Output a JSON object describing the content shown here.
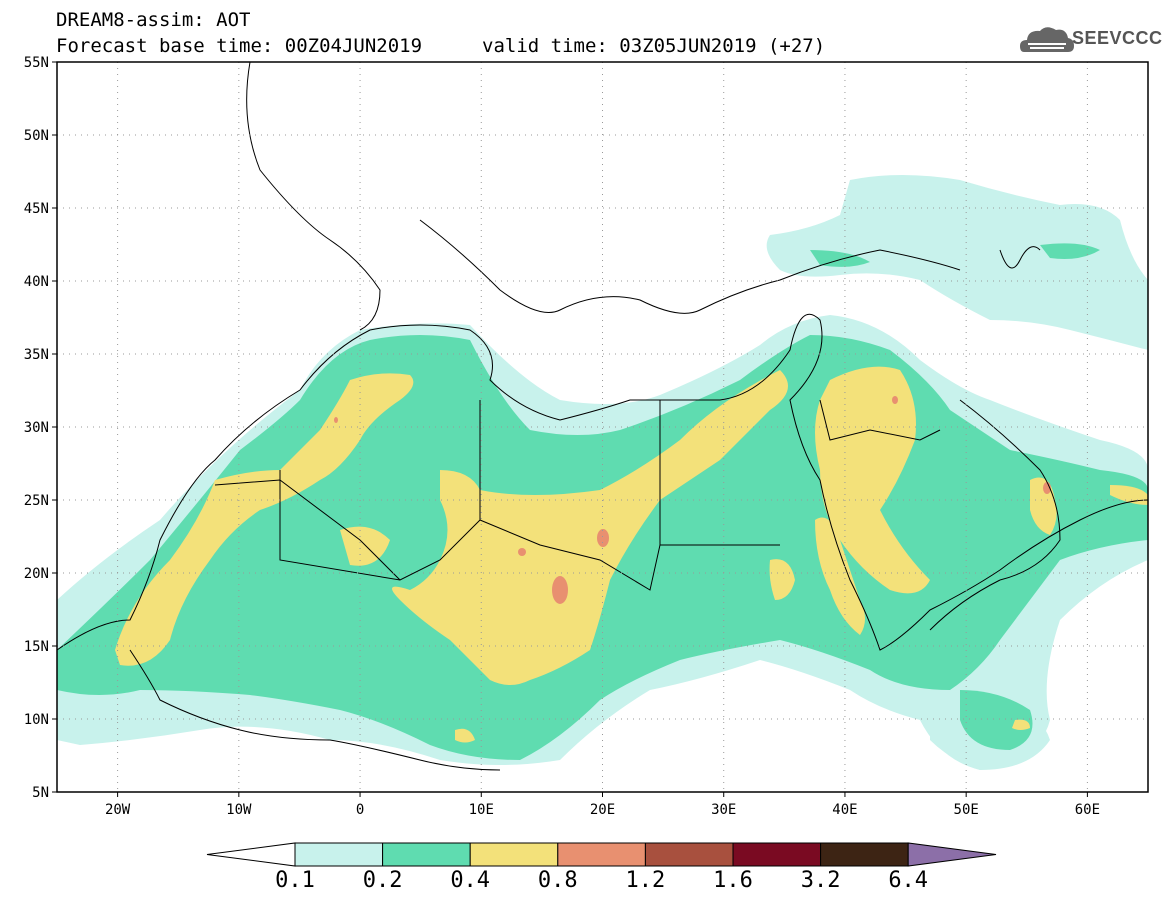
{
  "header": {
    "line1": "DREAM8-assim: AOT",
    "line2a": "Forecast base time: 00Z04JUN2019",
    "line2b": "valid time: 03Z05JUN2019 (+27)",
    "logo": "SEEVCCC"
  },
  "map": {
    "lat_ticks": [
      "55N",
      "50N",
      "45N",
      "40N",
      "35N",
      "30N",
      "25N",
      "20N",
      "15N",
      "10N",
      "5N"
    ],
    "lon_ticks": [
      "20W",
      "10W",
      "0",
      "10E",
      "20E",
      "30E",
      "40E",
      "50E",
      "60E"
    ],
    "lon_range": [
      -25,
      65
    ],
    "lat_range": [
      5,
      55
    ],
    "colors": {
      "c01": "#c8f2ec",
      "c02": "#5fdcb0",
      "c04": "#f3e17a",
      "c08": "#e89070",
      "c12": "#a8503e",
      "c16": "#7a0a22",
      "c32": "#3d2414",
      "c64": "#8c6fa8"
    }
  },
  "colorbar": {
    "labels": [
      "0.1",
      "0.2",
      "0.4",
      "0.8",
      "1.2",
      "1.6",
      "3.2",
      "6.4"
    ],
    "colors": [
      "#c8f2ec",
      "#5fdcb0",
      "#f3e17a",
      "#e89070",
      "#a8503e",
      "#7a0a22",
      "#3d2414"
    ],
    "under_color": "#ffffff",
    "over_color": "#8c6fa8"
  }
}
